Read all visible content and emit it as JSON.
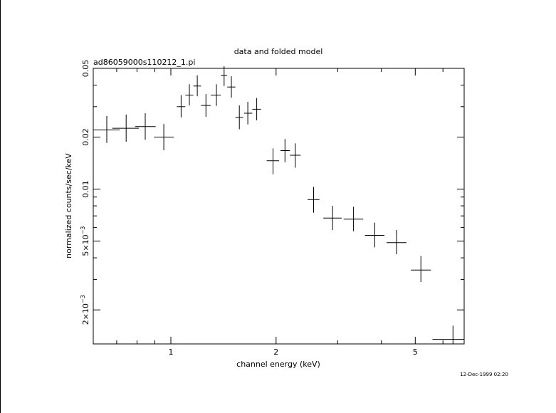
{
  "page": {
    "title": "data and folded model",
    "subtitle": "ad86059000s110212_1.pi",
    "timestamp": "12-Dec-1999 02:20",
    "xlabel": "channel energy (keV)",
    "ylabel": "normalized counts/sec/keV"
  },
  "chart_data": {
    "type": "scatter",
    "title": "data and folded model",
    "subtitle": "ad86059000s110212_1.pi",
    "xlabel": "channel energy (keV)",
    "ylabel": "normalized counts/sec/keV",
    "xscale": "log",
    "yscale": "log",
    "xlim": [
      0.6,
      6.9
    ],
    "ylim": [
      0.00127,
      0.05
    ],
    "grid": false,
    "legend": "none",
    "xticks": [
      {
        "value": 1,
        "label": "1"
      },
      {
        "value": 2,
        "label": "2"
      },
      {
        "value": 5,
        "label": "5"
      }
    ],
    "yticks": [
      {
        "value": 0.002,
        "base": "2×10",
        "exp": "−3"
      },
      {
        "value": 0.005,
        "base": "5×10",
        "exp": "−3"
      },
      {
        "value": 0.01,
        "label": "0.01"
      },
      {
        "value": 0.02,
        "label": "0.02"
      },
      {
        "value": 0.05,
        "label": "0.05"
      }
    ],
    "series": [
      {
        "points": [
          {
            "x": 0.656,
            "xlo": 0.6,
            "xhi": 0.715,
            "y": 0.022,
            "ylo": 0.0185,
            "yhi": 0.0265
          },
          {
            "x": 0.745,
            "xlo": 0.68,
            "xhi": 0.81,
            "y": 0.0225,
            "ylo": 0.0188,
            "yhi": 0.027
          },
          {
            "x": 0.845,
            "xlo": 0.79,
            "xhi": 0.905,
            "y": 0.023,
            "ylo": 0.0193,
            "yhi": 0.0275
          },
          {
            "x": 0.955,
            "xlo": 0.895,
            "xhi": 1.02,
            "y": 0.02,
            "ylo": 0.0168,
            "yhi": 0.0238
          },
          {
            "x": 1.07,
            "xlo": 1.04,
            "xhi": 1.1,
            "y": 0.03,
            "ylo": 0.026,
            "yhi": 0.035
          },
          {
            "x": 1.13,
            "xlo": 1.1,
            "xhi": 1.16,
            "y": 0.035,
            "ylo": 0.0305,
            "yhi": 0.0405
          },
          {
            "x": 1.19,
            "xlo": 1.16,
            "xhi": 1.22,
            "y": 0.0395,
            "ylo": 0.0345,
            "yhi": 0.0455
          },
          {
            "x": 1.26,
            "xlo": 1.22,
            "xhi": 1.3,
            "y": 0.0305,
            "ylo": 0.0262,
            "yhi": 0.0355
          },
          {
            "x": 1.35,
            "xlo": 1.3,
            "xhi": 1.39,
            "y": 0.035,
            "ylo": 0.0303,
            "yhi": 0.0405
          },
          {
            "x": 1.42,
            "xlo": 1.39,
            "xhi": 1.45,
            "y": 0.0455,
            "ylo": 0.0395,
            "yhi": 0.0515
          },
          {
            "x": 1.49,
            "xlo": 1.45,
            "xhi": 1.53,
            "y": 0.039,
            "ylo": 0.0338,
            "yhi": 0.045
          },
          {
            "x": 1.57,
            "xlo": 1.53,
            "xhi": 1.61,
            "y": 0.026,
            "ylo": 0.0222,
            "yhi": 0.0305
          },
          {
            "x": 1.66,
            "xlo": 1.62,
            "xhi": 1.71,
            "y": 0.0275,
            "ylo": 0.0237,
            "yhi": 0.032
          },
          {
            "x": 1.76,
            "xlo": 1.71,
            "xhi": 1.81,
            "y": 0.029,
            "ylo": 0.025,
            "yhi": 0.0337
          },
          {
            "x": 1.96,
            "xlo": 1.88,
            "xhi": 2.04,
            "y": 0.0146,
            "ylo": 0.0122,
            "yhi": 0.0172
          },
          {
            "x": 2.12,
            "xlo": 2.06,
            "xhi": 2.19,
            "y": 0.0167,
            "ylo": 0.0143,
            "yhi": 0.0195
          },
          {
            "x": 2.27,
            "xlo": 2.19,
            "xhi": 2.35,
            "y": 0.0157,
            "ylo": 0.0133,
            "yhi": 0.0184
          },
          {
            "x": 2.56,
            "xlo": 2.46,
            "xhi": 2.66,
            "y": 0.0087,
            "ylo": 0.0073,
            "yhi": 0.0103
          },
          {
            "x": 2.9,
            "xlo": 2.73,
            "xhi": 3.08,
            "y": 0.0068,
            "ylo": 0.0058,
            "yhi": 0.008
          },
          {
            "x": 3.33,
            "xlo": 3.12,
            "xhi": 3.55,
            "y": 0.0067,
            "ylo": 0.0057,
            "yhi": 0.0079
          },
          {
            "x": 3.83,
            "xlo": 3.59,
            "xhi": 4.08,
            "y": 0.0054,
            "ylo": 0.0046,
            "yhi": 0.0064
          },
          {
            "x": 4.42,
            "xlo": 4.14,
            "xhi": 4.72,
            "y": 0.0049,
            "ylo": 0.0042,
            "yhi": 0.0058
          },
          {
            "x": 5.19,
            "xlo": 4.86,
            "xhi": 5.54,
            "y": 0.0034,
            "ylo": 0.0029,
            "yhi": 0.0041
          },
          {
            "x": 6.41,
            "xlo": 5.6,
            "xhi": 6.9,
            "y": 0.00135,
            "ylo": 0.00127,
            "yhi": 0.00162
          }
        ]
      }
    ]
  }
}
